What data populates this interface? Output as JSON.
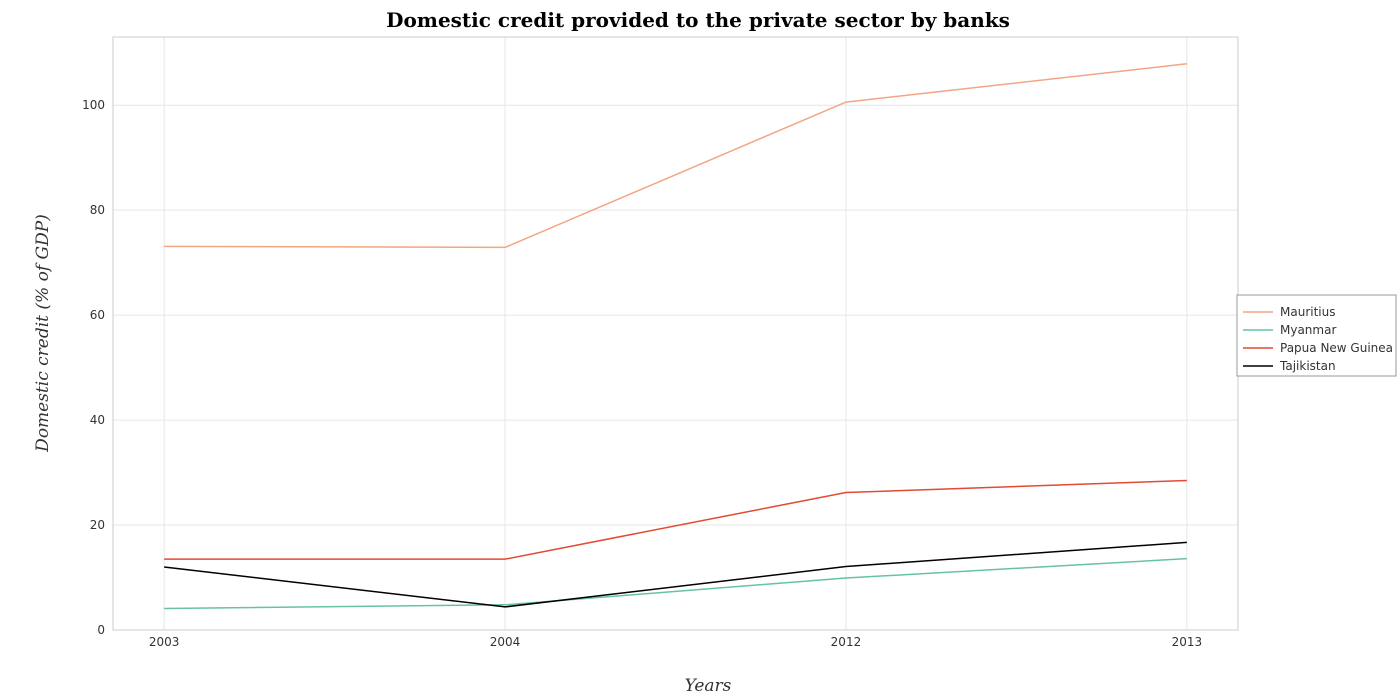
{
  "chart_data": {
    "type": "line",
    "title": "Domestic credit provided to the private sector by banks",
    "xlabel": "Years",
    "ylabel": "Domestic credit (% of GDP)",
    "categories": [
      "2003",
      "2004",
      "2012",
      "2013"
    ],
    "ylim": [
      0,
      113
    ],
    "yticks": [
      0,
      20,
      40,
      60,
      80,
      100
    ],
    "grid": true,
    "legend_position": "right",
    "series": [
      {
        "name": "Mauritius",
        "color": "#f4a582",
        "values": [
          73.1,
          72.9,
          100.6,
          107.9
        ]
      },
      {
        "name": "Myanmar",
        "color": "#66c2a5",
        "values": [
          4.1,
          4.8,
          9.9,
          13.6
        ]
      },
      {
        "name": "Papua New Guinea",
        "color": "#e34a33",
        "values": [
          13.5,
          13.5,
          26.2,
          28.5
        ]
      },
      {
        "name": "Tajikistan",
        "color": "#000000",
        "values": [
          12.0,
          4.4,
          12.1,
          16.7
        ]
      }
    ]
  }
}
